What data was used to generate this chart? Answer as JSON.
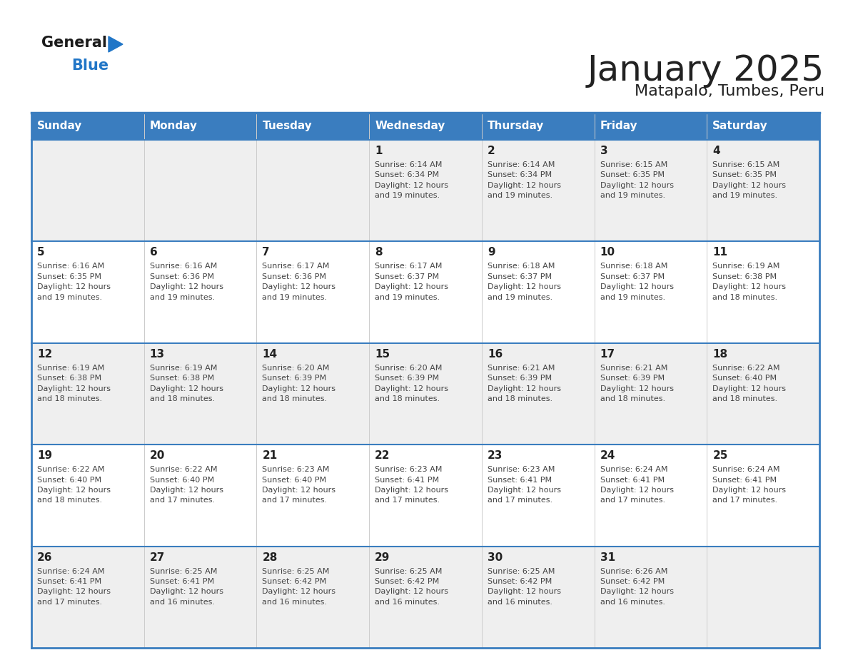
{
  "title": "January 2025",
  "subtitle": "Matapalo, Tumbes, Peru",
  "header_bg": "#3a7dbf",
  "header_text_color": "#ffffff",
  "day_names": [
    "Sunday",
    "Monday",
    "Tuesday",
    "Wednesday",
    "Thursday",
    "Friday",
    "Saturday"
  ],
  "row_bg_light": "#efefef",
  "row_bg_white": "#ffffff",
  "border_color": "#3a7dbf",
  "separator_color": "#3a7dbf",
  "text_color": "#444444",
  "number_color": "#222222",
  "calendar": [
    [
      {
        "day": "",
        "info": ""
      },
      {
        "day": "",
        "info": ""
      },
      {
        "day": "",
        "info": ""
      },
      {
        "day": "1",
        "info": "Sunrise: 6:14 AM\nSunset: 6:34 PM\nDaylight: 12 hours\nand 19 minutes."
      },
      {
        "day": "2",
        "info": "Sunrise: 6:14 AM\nSunset: 6:34 PM\nDaylight: 12 hours\nand 19 minutes."
      },
      {
        "day": "3",
        "info": "Sunrise: 6:15 AM\nSunset: 6:35 PM\nDaylight: 12 hours\nand 19 minutes."
      },
      {
        "day": "4",
        "info": "Sunrise: 6:15 AM\nSunset: 6:35 PM\nDaylight: 12 hours\nand 19 minutes."
      }
    ],
    [
      {
        "day": "5",
        "info": "Sunrise: 6:16 AM\nSunset: 6:35 PM\nDaylight: 12 hours\nand 19 minutes."
      },
      {
        "day": "6",
        "info": "Sunrise: 6:16 AM\nSunset: 6:36 PM\nDaylight: 12 hours\nand 19 minutes."
      },
      {
        "day": "7",
        "info": "Sunrise: 6:17 AM\nSunset: 6:36 PM\nDaylight: 12 hours\nand 19 minutes."
      },
      {
        "day": "8",
        "info": "Sunrise: 6:17 AM\nSunset: 6:37 PM\nDaylight: 12 hours\nand 19 minutes."
      },
      {
        "day": "9",
        "info": "Sunrise: 6:18 AM\nSunset: 6:37 PM\nDaylight: 12 hours\nand 19 minutes."
      },
      {
        "day": "10",
        "info": "Sunrise: 6:18 AM\nSunset: 6:37 PM\nDaylight: 12 hours\nand 19 minutes."
      },
      {
        "day": "11",
        "info": "Sunrise: 6:19 AM\nSunset: 6:38 PM\nDaylight: 12 hours\nand 18 minutes."
      }
    ],
    [
      {
        "day": "12",
        "info": "Sunrise: 6:19 AM\nSunset: 6:38 PM\nDaylight: 12 hours\nand 18 minutes."
      },
      {
        "day": "13",
        "info": "Sunrise: 6:19 AM\nSunset: 6:38 PM\nDaylight: 12 hours\nand 18 minutes."
      },
      {
        "day": "14",
        "info": "Sunrise: 6:20 AM\nSunset: 6:39 PM\nDaylight: 12 hours\nand 18 minutes."
      },
      {
        "day": "15",
        "info": "Sunrise: 6:20 AM\nSunset: 6:39 PM\nDaylight: 12 hours\nand 18 minutes."
      },
      {
        "day": "16",
        "info": "Sunrise: 6:21 AM\nSunset: 6:39 PM\nDaylight: 12 hours\nand 18 minutes."
      },
      {
        "day": "17",
        "info": "Sunrise: 6:21 AM\nSunset: 6:39 PM\nDaylight: 12 hours\nand 18 minutes."
      },
      {
        "day": "18",
        "info": "Sunrise: 6:22 AM\nSunset: 6:40 PM\nDaylight: 12 hours\nand 18 minutes."
      }
    ],
    [
      {
        "day": "19",
        "info": "Sunrise: 6:22 AM\nSunset: 6:40 PM\nDaylight: 12 hours\nand 18 minutes."
      },
      {
        "day": "20",
        "info": "Sunrise: 6:22 AM\nSunset: 6:40 PM\nDaylight: 12 hours\nand 17 minutes."
      },
      {
        "day": "21",
        "info": "Sunrise: 6:23 AM\nSunset: 6:40 PM\nDaylight: 12 hours\nand 17 minutes."
      },
      {
        "day": "22",
        "info": "Sunrise: 6:23 AM\nSunset: 6:41 PM\nDaylight: 12 hours\nand 17 minutes."
      },
      {
        "day": "23",
        "info": "Sunrise: 6:23 AM\nSunset: 6:41 PM\nDaylight: 12 hours\nand 17 minutes."
      },
      {
        "day": "24",
        "info": "Sunrise: 6:24 AM\nSunset: 6:41 PM\nDaylight: 12 hours\nand 17 minutes."
      },
      {
        "day": "25",
        "info": "Sunrise: 6:24 AM\nSunset: 6:41 PM\nDaylight: 12 hours\nand 17 minutes."
      }
    ],
    [
      {
        "day": "26",
        "info": "Sunrise: 6:24 AM\nSunset: 6:41 PM\nDaylight: 12 hours\nand 17 minutes."
      },
      {
        "day": "27",
        "info": "Sunrise: 6:25 AM\nSunset: 6:41 PM\nDaylight: 12 hours\nand 16 minutes."
      },
      {
        "day": "28",
        "info": "Sunrise: 6:25 AM\nSunset: 6:42 PM\nDaylight: 12 hours\nand 16 minutes."
      },
      {
        "day": "29",
        "info": "Sunrise: 6:25 AM\nSunset: 6:42 PM\nDaylight: 12 hours\nand 16 minutes."
      },
      {
        "day": "30",
        "info": "Sunrise: 6:25 AM\nSunset: 6:42 PM\nDaylight: 12 hours\nand 16 minutes."
      },
      {
        "day": "31",
        "info": "Sunrise: 6:26 AM\nSunset: 6:42 PM\nDaylight: 12 hours\nand 16 minutes."
      },
      {
        "day": "",
        "info": ""
      }
    ]
  ],
  "logo_general_color": "#1a1a1a",
  "logo_blue_color": "#2176c7",
  "row_colors": [
    "#efefef",
    "#ffffff",
    "#efefef",
    "#ffffff",
    "#efefef"
  ]
}
